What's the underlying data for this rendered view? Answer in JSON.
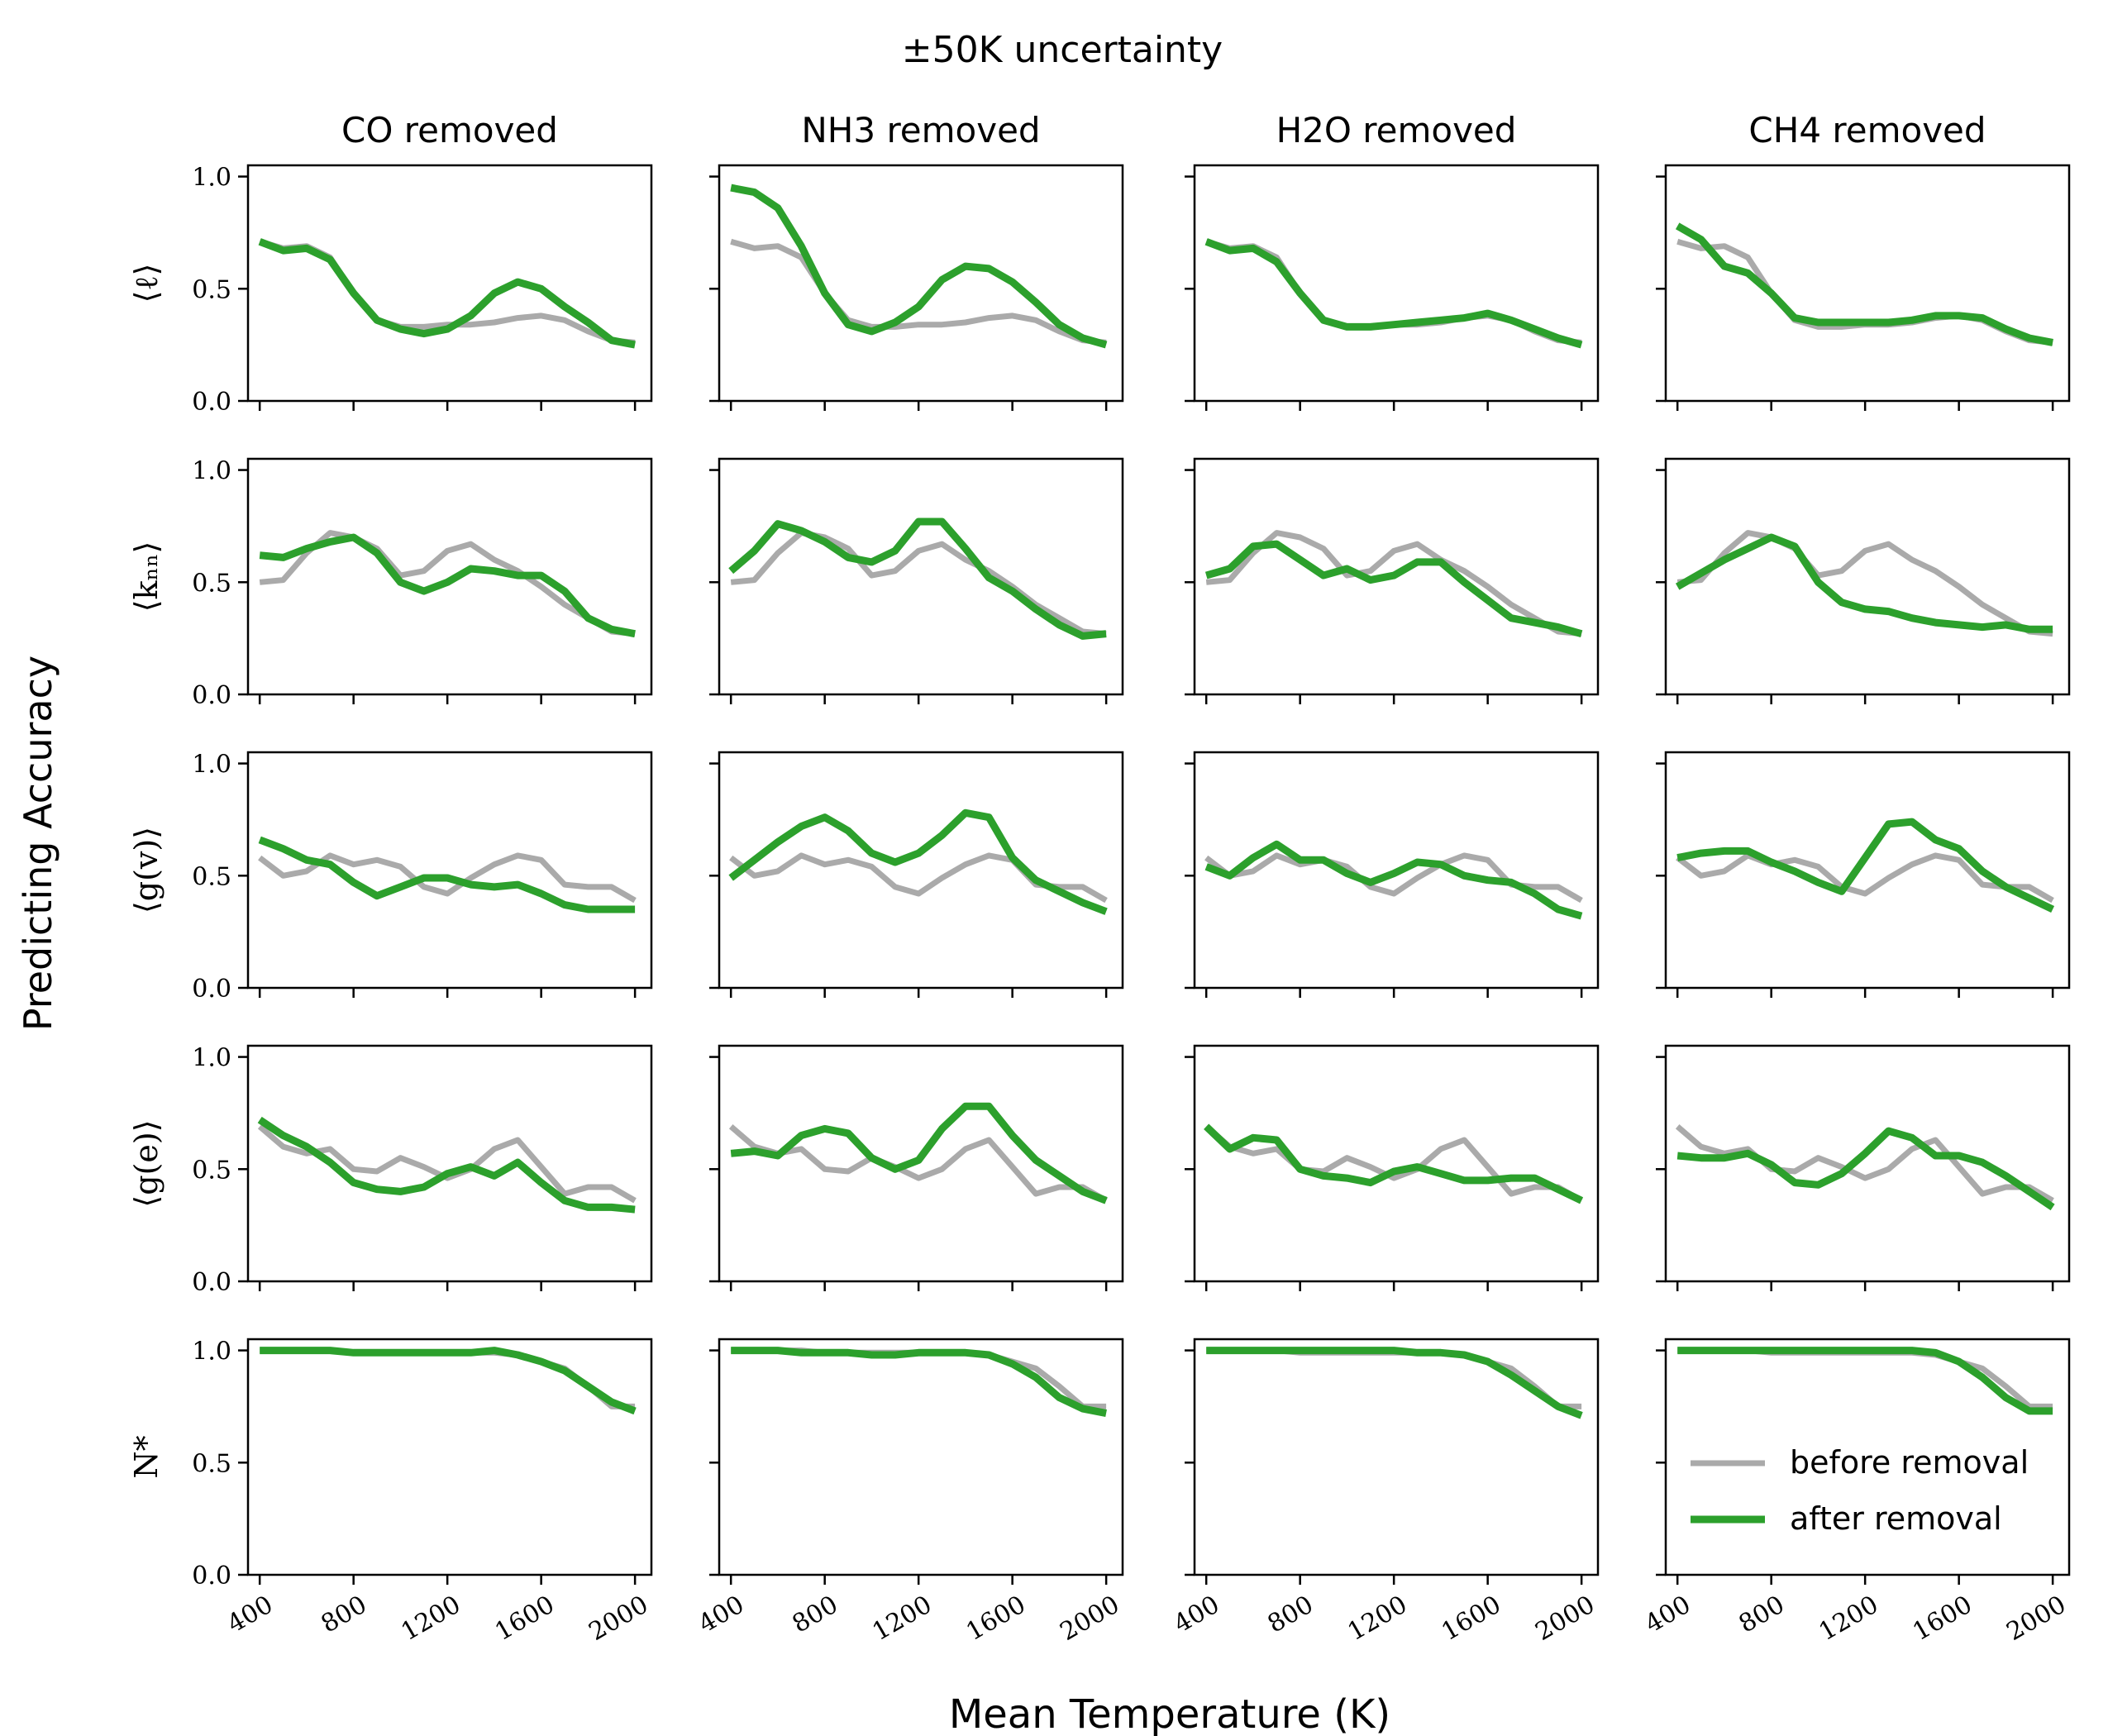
{
  "figure": {
    "suptitle": "±50K uncertainty",
    "xlabel": "Mean Temperature (K)",
    "ylabel": "Predicting Accuracy",
    "columns": [
      "CO removed",
      "NH3 removed",
      "H2O removed",
      "CH4 removed"
    ],
    "rows": [
      "⟨ℓ⟩",
      "⟨kₙₙ⟩",
      "⟨g(v)⟩",
      "⟨g(e)⟩",
      "N*"
    ],
    "xticks": [
      "400",
      "800",
      "1200",
      "1600",
      "2000"
    ],
    "yticks": [
      "0.0",
      "0.5",
      "1.0"
    ],
    "legend": {
      "before": "before removal",
      "after": "after removal"
    },
    "colors": {
      "before": "#aaaaaa",
      "after": "#2ca02c"
    }
  },
  "chart_data": {
    "type": "line",
    "x": [
      400,
      500,
      600,
      700,
      800,
      900,
      1000,
      1100,
      1200,
      1300,
      1400,
      1500,
      1600,
      1700,
      1800,
      1900,
      2000
    ],
    "xlim": [
      350,
      2070
    ],
    "ylim": [
      0,
      1.05
    ],
    "grid": false,
    "legend_position": "lower-right (last panel of bottom row)",
    "series_names": [
      "before removal",
      "after removal"
    ],
    "panels": [
      [
        {
          "before": [
            0.71,
            0.68,
            0.69,
            0.64,
            0.48,
            0.36,
            0.33,
            0.33,
            0.34,
            0.34,
            0.35,
            0.37,
            0.38,
            0.36,
            0.31,
            0.27,
            0.26
          ],
          "after": [
            0.71,
            0.67,
            0.68,
            0.63,
            0.48,
            0.36,
            0.32,
            0.3,
            0.32,
            0.38,
            0.48,
            0.53,
            0.5,
            0.42,
            0.35,
            0.27,
            0.25
          ]
        },
        {
          "before": [
            0.71,
            0.68,
            0.69,
            0.64,
            0.48,
            0.36,
            0.33,
            0.33,
            0.34,
            0.34,
            0.35,
            0.37,
            0.38,
            0.36,
            0.31,
            0.27,
            0.26
          ],
          "after": [
            0.95,
            0.93,
            0.86,
            0.69,
            0.48,
            0.34,
            0.31,
            0.35,
            0.42,
            0.54,
            0.6,
            0.59,
            0.53,
            0.44,
            0.34,
            0.28,
            0.25
          ]
        },
        {
          "before": [
            0.71,
            0.68,
            0.69,
            0.64,
            0.48,
            0.36,
            0.33,
            0.33,
            0.34,
            0.34,
            0.35,
            0.37,
            0.38,
            0.36,
            0.31,
            0.27,
            0.26
          ],
          "after": [
            0.71,
            0.67,
            0.68,
            0.62,
            0.48,
            0.36,
            0.33,
            0.33,
            0.34,
            0.35,
            0.36,
            0.37,
            0.39,
            0.36,
            0.32,
            0.28,
            0.25
          ]
        },
        {
          "before": [
            0.71,
            0.68,
            0.69,
            0.64,
            0.48,
            0.36,
            0.33,
            0.33,
            0.34,
            0.34,
            0.35,
            0.37,
            0.38,
            0.36,
            0.31,
            0.27,
            0.26
          ],
          "after": [
            0.78,
            0.72,
            0.6,
            0.57,
            0.48,
            0.37,
            0.35,
            0.35,
            0.35,
            0.35,
            0.36,
            0.38,
            0.38,
            0.37,
            0.32,
            0.28,
            0.26
          ]
        }
      ],
      [
        {
          "before": [
            0.5,
            0.51,
            0.63,
            0.72,
            0.7,
            0.65,
            0.53,
            0.55,
            0.64,
            0.67,
            0.6,
            0.55,
            0.48,
            0.4,
            0.34,
            0.28,
            0.27
          ],
          "after": [
            0.62,
            0.61,
            0.65,
            0.68,
            0.7,
            0.63,
            0.5,
            0.46,
            0.5,
            0.56,
            0.55,
            0.53,
            0.53,
            0.46,
            0.34,
            0.29,
            0.27
          ]
        },
        {
          "before": [
            0.5,
            0.51,
            0.63,
            0.72,
            0.7,
            0.65,
            0.53,
            0.55,
            0.64,
            0.67,
            0.6,
            0.55,
            0.48,
            0.4,
            0.34,
            0.28,
            0.27
          ],
          "after": [
            0.55,
            0.64,
            0.76,
            0.73,
            0.68,
            0.61,
            0.59,
            0.64,
            0.77,
            0.77,
            0.65,
            0.52,
            0.46,
            0.38,
            0.31,
            0.26,
            0.27
          ]
        },
        {
          "before": [
            0.5,
            0.51,
            0.63,
            0.72,
            0.7,
            0.65,
            0.53,
            0.55,
            0.64,
            0.67,
            0.6,
            0.55,
            0.48,
            0.4,
            0.34,
            0.28,
            0.27
          ],
          "after": [
            0.53,
            0.56,
            0.66,
            0.67,
            0.6,
            0.53,
            0.56,
            0.51,
            0.53,
            0.59,
            0.59,
            0.5,
            0.42,
            0.34,
            0.32,
            0.3,
            0.27
          ]
        },
        {
          "before": [
            0.5,
            0.51,
            0.63,
            0.72,
            0.7,
            0.65,
            0.53,
            0.55,
            0.64,
            0.67,
            0.6,
            0.55,
            0.48,
            0.4,
            0.34,
            0.28,
            0.27
          ],
          "after": [
            0.48,
            0.54,
            0.6,
            0.65,
            0.7,
            0.66,
            0.5,
            0.41,
            0.38,
            0.37,
            0.34,
            0.32,
            0.31,
            0.3,
            0.31,
            0.29,
            0.29
          ]
        }
      ],
      [
        {
          "before": [
            0.58,
            0.5,
            0.52,
            0.59,
            0.55,
            0.57,
            0.54,
            0.45,
            0.42,
            0.49,
            0.55,
            0.59,
            0.57,
            0.46,
            0.45,
            0.45,
            0.39
          ],
          "after": [
            0.66,
            0.62,
            0.57,
            0.55,
            0.47,
            0.41,
            0.45,
            0.49,
            0.49,
            0.46,
            0.45,
            0.46,
            0.42,
            0.37,
            0.35,
            0.35,
            0.35
          ]
        },
        {
          "before": [
            0.58,
            0.5,
            0.52,
            0.59,
            0.55,
            0.57,
            0.54,
            0.45,
            0.42,
            0.49,
            0.55,
            0.59,
            0.57,
            0.46,
            0.45,
            0.45,
            0.39
          ],
          "after": [
            0.49,
            0.57,
            0.65,
            0.72,
            0.76,
            0.7,
            0.6,
            0.56,
            0.6,
            0.68,
            0.78,
            0.76,
            0.58,
            0.48,
            0.43,
            0.38,
            0.34
          ]
        },
        {
          "before": [
            0.58,
            0.5,
            0.52,
            0.59,
            0.55,
            0.57,
            0.54,
            0.45,
            0.42,
            0.49,
            0.55,
            0.59,
            0.57,
            0.46,
            0.45,
            0.45,
            0.39
          ],
          "after": [
            0.54,
            0.5,
            0.58,
            0.64,
            0.57,
            0.57,
            0.51,
            0.47,
            0.51,
            0.56,
            0.55,
            0.5,
            0.48,
            0.47,
            0.42,
            0.35,
            0.32
          ]
        },
        {
          "before": [
            0.58,
            0.5,
            0.52,
            0.59,
            0.55,
            0.57,
            0.54,
            0.45,
            0.42,
            0.49,
            0.55,
            0.59,
            0.57,
            0.46,
            0.45,
            0.45,
            0.39
          ],
          "after": [
            0.58,
            0.6,
            0.61,
            0.61,
            0.56,
            0.52,
            0.47,
            0.43,
            0.58,
            0.73,
            0.74,
            0.66,
            0.62,
            0.52,
            0.45,
            0.4,
            0.35
          ]
        }
      ],
      [
        {
          "before": [
            0.69,
            0.6,
            0.57,
            0.59,
            0.5,
            0.49,
            0.55,
            0.51,
            0.46,
            0.5,
            0.59,
            0.63,
            0.51,
            0.39,
            0.42,
            0.42,
            0.36
          ],
          "after": [
            0.72,
            0.65,
            0.6,
            0.53,
            0.44,
            0.41,
            0.4,
            0.42,
            0.48,
            0.51,
            0.47,
            0.53,
            0.44,
            0.36,
            0.33,
            0.33,
            0.32
          ]
        },
        {
          "before": [
            0.69,
            0.6,
            0.57,
            0.59,
            0.5,
            0.49,
            0.55,
            0.51,
            0.46,
            0.5,
            0.59,
            0.63,
            0.51,
            0.39,
            0.42,
            0.42,
            0.36
          ],
          "after": [
            0.57,
            0.58,
            0.56,
            0.65,
            0.68,
            0.66,
            0.55,
            0.5,
            0.54,
            0.68,
            0.78,
            0.78,
            0.65,
            0.54,
            0.47,
            0.4,
            0.36
          ]
        },
        {
          "before": [
            0.69,
            0.6,
            0.57,
            0.59,
            0.5,
            0.49,
            0.55,
            0.51,
            0.46,
            0.5,
            0.59,
            0.63,
            0.51,
            0.39,
            0.42,
            0.42,
            0.36
          ],
          "after": [
            0.69,
            0.59,
            0.64,
            0.63,
            0.5,
            0.47,
            0.46,
            0.44,
            0.49,
            0.51,
            0.48,
            0.45,
            0.45,
            0.46,
            0.46,
            0.41,
            0.36
          ]
        },
        {
          "before": [
            0.69,
            0.6,
            0.57,
            0.59,
            0.5,
            0.49,
            0.55,
            0.51,
            0.46,
            0.5,
            0.59,
            0.63,
            0.51,
            0.39,
            0.42,
            0.42,
            0.36
          ],
          "after": [
            0.56,
            0.55,
            0.55,
            0.57,
            0.52,
            0.44,
            0.43,
            0.48,
            0.57,
            0.67,
            0.64,
            0.56,
            0.56,
            0.53,
            0.47,
            0.4,
            0.33
          ]
        }
      ],
      [
        {
          "before": [
            1.0,
            1.0,
            1.0,
            1.0,
            0.99,
            0.99,
            0.99,
            0.99,
            0.99,
            0.99,
            0.99,
            0.98,
            0.95,
            0.92,
            0.84,
            0.75,
            0.75
          ],
          "after": [
            1.0,
            1.0,
            1.0,
            1.0,
            0.99,
            0.99,
            0.99,
            0.99,
            0.99,
            0.99,
            1.0,
            0.98,
            0.95,
            0.91,
            0.84,
            0.77,
            0.73
          ]
        },
        {
          "before": [
            1.0,
            1.0,
            1.0,
            1.0,
            0.99,
            0.99,
            0.99,
            0.99,
            0.99,
            0.99,
            0.99,
            0.98,
            0.95,
            0.92,
            0.84,
            0.75,
            0.75
          ],
          "after": [
            1.0,
            1.0,
            1.0,
            0.99,
            0.99,
            0.99,
            0.98,
            0.98,
            0.99,
            0.99,
            0.99,
            0.98,
            0.94,
            0.88,
            0.79,
            0.74,
            0.72
          ]
        },
        {
          "before": [
            1.0,
            1.0,
            1.0,
            1.0,
            0.99,
            0.99,
            0.99,
            0.99,
            0.99,
            0.99,
            0.99,
            0.98,
            0.95,
            0.92,
            0.84,
            0.75,
            0.75
          ],
          "after": [
            1.0,
            1.0,
            1.0,
            1.0,
            1.0,
            1.0,
            1.0,
            1.0,
            1.0,
            0.99,
            0.99,
            0.98,
            0.95,
            0.89,
            0.82,
            0.75,
            0.71
          ]
        },
        {
          "before": [
            1.0,
            1.0,
            1.0,
            1.0,
            0.99,
            0.99,
            0.99,
            0.99,
            0.99,
            0.99,
            0.99,
            0.98,
            0.95,
            0.92,
            0.84,
            0.75,
            0.75
          ],
          "after": [
            1.0,
            1.0,
            1.0,
            1.0,
            1.0,
            1.0,
            1.0,
            1.0,
            1.0,
            1.0,
            1.0,
            0.99,
            0.95,
            0.88,
            0.79,
            0.73,
            0.73
          ]
        }
      ]
    ]
  }
}
